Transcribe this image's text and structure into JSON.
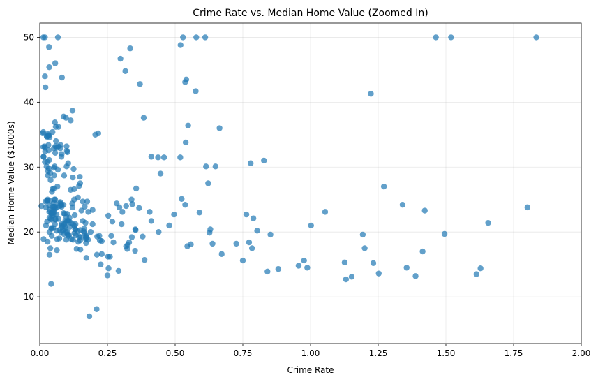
{
  "chart_data": {
    "type": "scatter",
    "title": "Crime Rate vs. Median Home Value (Zoomed In)",
    "xlabel": "Crime Rate",
    "ylabel": "Median Home Value ($1000s)",
    "xlim": [
      0,
      2.0
    ],
    "ylim": [
      2.8,
      52.2
    ],
    "xticks": [
      "0.00",
      "0.25",
      "0.50",
      "0.75",
      "1.00",
      "1.25",
      "1.50",
      "1.75",
      "2.00"
    ],
    "yticks": [
      "10",
      "20",
      "30",
      "40",
      "50"
    ],
    "grid": true,
    "marker_color": "#1f77b4",
    "marker_alpha": 0.7,
    "points": [
      [
        0.006,
        24.0
      ],
      [
        0.027,
        21.6
      ],
      [
        0.027,
        34.7
      ],
      [
        0.032,
        33.4
      ],
      [
        0.069,
        36.2
      ],
      [
        0.03,
        28.7
      ],
      [
        0.088,
        22.9
      ],
      [
        0.145,
        27.1
      ],
      [
        0.211,
        16.5
      ],
      [
        0.17,
        18.9
      ],
      [
        0.225,
        15.0
      ],
      [
        0.117,
        18.9
      ],
      [
        0.094,
        21.7
      ],
      [
        0.63,
        20.4
      ],
      [
        0.638,
        18.2
      ],
      [
        0.627,
        19.9
      ],
      [
        1.054,
        23.1
      ],
      [
        0.784,
        17.5
      ],
      [
        0.803,
        20.2
      ],
      [
        0.726,
        18.2
      ],
      [
        1.252,
        13.6
      ],
      [
        0.852,
        19.6
      ],
      [
        1.232,
        15.2
      ],
      [
        0.988,
        14.5
      ],
      [
        0.75,
        15.6
      ],
      [
        0.841,
        13.9
      ],
      [
        0.672,
        16.6
      ],
      [
        0.956,
        14.8
      ],
      [
        0.773,
        18.4
      ],
      [
        1.002,
        21.0
      ],
      [
        1.131,
        12.7
      ],
      [
        1.355,
        14.5
      ],
      [
        1.388,
        13.2
      ],
      [
        1.152,
        13.1
      ],
      [
        1.613,
        13.5
      ],
      [
        0.064,
        18.9
      ],
      [
        0.097,
        20.0
      ],
      [
        0.08,
        21.0
      ],
      [
        0.175,
        24.7
      ],
      [
        0.028,
        30.8
      ],
      [
        0.034,
        34.9
      ],
      [
        0.127,
        26.6
      ],
      [
        0.141,
        25.3
      ],
      [
        0.159,
        24.7
      ],
      [
        0.123,
        21.2
      ],
      [
        0.171,
        19.3
      ],
      [
        0.188,
        20.0
      ],
      [
        0.229,
        16.6
      ],
      [
        0.254,
        14.4
      ],
      [
        0.22,
        19.4
      ],
      [
        0.089,
        19.7
      ],
      [
        0.043,
        20.5
      ],
      [
        0.054,
        25.0
      ],
      [
        0.05,
        23.4
      ],
      [
        0.014,
        18.9
      ],
      [
        0.013,
        35.4
      ],
      [
        0.021,
        24.7
      ],
      [
        0.014,
        31.6
      ],
      [
        0.154,
        23.3
      ],
      [
        0.103,
        19.6
      ],
      [
        0.149,
        18.7
      ],
      [
        0.172,
        16.0
      ],
      [
        0.11,
        22.2
      ],
      [
        0.127,
        25.0
      ],
      [
        0.019,
        33.0
      ],
      [
        0.036,
        23.5
      ],
      [
        0.044,
        19.4
      ],
      [
        0.058,
        22.0
      ],
      [
        0.136,
        17.4
      ],
      [
        0.128,
        20.9
      ],
      [
        0.088,
        24.2
      ],
      [
        0.159,
        21.7
      ],
      [
        0.092,
        22.8
      ],
      [
        0.195,
        23.4
      ],
      [
        0.079,
        24.1
      ],
      [
        0.095,
        21.4
      ],
      [
        0.102,
        20.0
      ],
      [
        0.083,
        20.8
      ],
      [
        0.056,
        21.2
      ],
      [
        0.085,
        20.3
      ],
      [
        0.04,
        28.0
      ],
      [
        0.047,
        23.9
      ],
      [
        0.038,
        24.8
      ],
      [
        0.043,
        22.9
      ],
      [
        0.052,
        23.9
      ],
      [
        0.047,
        26.6
      ],
      [
        0.045,
        22.5
      ],
      [
        0.036,
        22.2
      ],
      [
        0.057,
        23.6
      ],
      [
        0.053,
        28.7
      ],
      [
        0.05,
        22.6
      ],
      [
        0.04,
        22.0
      ],
      [
        0.042,
        22.9
      ],
      [
        0.029,
        25.0
      ],
      [
        0.043,
        20.6
      ],
      [
        0.122,
        28.4
      ],
      [
        0.115,
        21.4
      ],
      [
        0.121,
        38.7
      ],
      [
        0.082,
        43.8
      ],
      [
        0.069,
        33.2
      ],
      [
        0.149,
        27.5
      ],
      [
        0.114,
        26.5
      ],
      [
        0.229,
        18.6
      ],
      [
        0.212,
        19.3
      ],
      [
        0.14,
        20.1
      ],
      [
        0.133,
        19.5
      ],
      [
        0.171,
        19.5
      ],
      [
        0.131,
        20.4
      ],
      [
        0.128,
        19.8
      ],
      [
        0.264,
        19.4
      ],
      [
        0.108,
        21.7
      ],
      [
        0.101,
        22.8
      ],
      [
        0.123,
        18.8
      ],
      [
        0.222,
        18.7
      ],
      [
        0.142,
        18.5
      ],
      [
        0.171,
        18.3
      ],
      [
        0.132,
        21.2
      ],
      [
        0.151,
        19.2
      ],
      [
        0.131,
        20.4
      ],
      [
        0.145,
        19.3
      ],
      [
        0.069,
        22.0
      ],
      [
        0.072,
        20.3
      ],
      [
        0.093,
        20.5
      ],
      [
        0.15,
        17.3
      ],
      [
        0.098,
        18.8
      ],
      [
        0.169,
        21.4
      ],
      [
        0.387,
        15.7
      ],
      [
        0.259,
        16.2
      ],
      [
        0.325,
        18.0
      ],
      [
        0.881,
        14.3
      ],
      [
        0.34,
        19.2
      ],
      [
        1.193,
        19.6
      ],
      [
        0.59,
        23.0
      ],
      [
        0.33,
        18.4
      ],
      [
        0.976,
        15.6
      ],
      [
        0.558,
        18.1
      ],
      [
        0.323,
        17.4
      ],
      [
        0.352,
        17.1
      ],
      [
        0.25,
        13.3
      ],
      [
        0.545,
        17.8
      ],
      [
        0.291,
        14.0
      ],
      [
        1.628,
        14.4
      ],
      [
        0.013,
        50.0
      ],
      [
        0.034,
        48.5
      ],
      [
        0.035,
        45.4
      ],
      [
        0.023,
        23.8
      ],
      [
        0.027,
        24.8
      ],
      [
        0.053,
        23.1
      ],
      [
        0.049,
        22.9
      ],
      [
        0.052,
        24.5
      ],
      [
        0.09,
        21.2
      ],
      [
        0.019,
        44.0
      ],
      [
        0.019,
        50.0
      ],
      [
        0.033,
        32.6
      ],
      [
        0.058,
        21.9
      ],
      [
        0.03,
        29.4
      ],
      [
        0.1,
        32.5
      ],
      [
        0.076,
        32.9
      ],
      [
        0.044,
        21.9
      ],
      [
        0.059,
        36.2
      ],
      [
        0.057,
        46.0
      ],
      [
        0.067,
        50.0
      ],
      [
        0.052,
        32.9
      ],
      [
        0.058,
        33.2
      ],
      [
        0.033,
        29.8
      ],
      [
        0.035,
        23.1
      ],
      [
        0.03,
        35.1
      ],
      [
        0.036,
        34.6
      ],
      [
        0.063,
        33.0
      ],
      [
        0.08,
        31.6
      ],
      [
        0.013,
        33.1
      ],
      [
        0.011,
        35.2
      ],
      [
        0.025,
        30.1
      ],
      [
        0.021,
        42.3
      ],
      [
        0.018,
        33.2
      ],
      [
        0.028,
        24.8
      ],
      [
        0.023,
        21.0
      ],
      [
        0.014,
        31.6
      ],
      [
        0.031,
        34.9
      ],
      [
        0.055,
        30.1
      ],
      [
        0.035,
        24.1
      ],
      [
        0.047,
        35.4
      ],
      [
        0.105,
        30.6
      ],
      [
        0.081,
        32.0
      ],
      [
        0.125,
        29.7
      ],
      [
        0.088,
        37.8
      ],
      [
        0.102,
        32.3
      ],
      [
        0.08,
        24.3
      ],
      [
        0.09,
        28.7
      ],
      [
        0.067,
        29.6
      ],
      [
        0.063,
        23.8
      ],
      [
        0.099,
        33.2
      ],
      [
        0.065,
        27.0
      ],
      [
        0.06,
        34.0
      ],
      [
        0.056,
        36.9
      ],
      [
        0.057,
        32.2
      ],
      [
        0.05,
        20.6
      ],
      [
        0.057,
        25.0
      ],
      [
        0.036,
        20.0
      ],
      [
        0.077,
        33.4
      ],
      [
        0.098,
        22.3
      ],
      [
        0.099,
        30.1
      ],
      [
        0.081,
        23.9
      ],
      [
        0.074,
        24.4
      ],
      [
        0.052,
        26.7
      ],
      [
        0.045,
        26.2
      ],
      [
        0.035,
        31.1
      ],
      [
        0.062,
        22.7
      ],
      [
        0.114,
        37.2
      ],
      [
        0.019,
        30.8
      ],
      [
        0.076,
        24.6
      ],
      [
        0.052,
        29.9
      ],
      [
        0.02,
        32.4
      ],
      [
        0.026,
        34.7
      ],
      [
        0.097,
        37.6
      ],
      [
        0.039,
        29.1
      ],
      [
        0.078,
        20.0
      ],
      [
        0.072,
        19.0
      ],
      [
        0.094,
        20.8
      ],
      [
        0.12,
        24.4
      ],
      [
        0.148,
        28.5
      ],
      [
        0.121,
        23.8
      ],
      [
        0.162,
        20.1
      ],
      [
        0.166,
        23.9
      ],
      [
        0.111,
        20.8
      ],
      [
        0.179,
        23.1
      ],
      [
        0.101,
        21.7
      ],
      [
        0.164,
        20.5
      ],
      [
        0.178,
        18.8
      ],
      [
        0.062,
        20.2
      ],
      [
        0.074,
        24.0
      ],
      [
        0.105,
        21.7
      ],
      [
        0.106,
        19.4
      ],
      [
        0.056,
        23.9
      ],
      [
        0.08,
        21.2
      ],
      [
        0.171,
        19.1
      ],
      [
        0.195,
        21.2
      ],
      [
        0.15,
        20.3
      ],
      [
        0.108,
        19.5
      ],
      [
        0.165,
        19.8
      ],
      [
        0.129,
        22.6
      ],
      [
        0.063,
        17.2
      ],
      [
        0.036,
        16.5
      ],
      [
        0.039,
        17.5
      ],
      [
        0.042,
        12.0
      ],
      [
        0.029,
        18.5
      ],
      [
        0.21,
        8.1
      ],
      [
        0.183,
        7.0
      ],
      [
        0.216,
        35.2
      ],
      [
        0.205,
        35.0
      ],
      [
        0.529,
        50.0
      ],
      [
        0.578,
        50.0
      ],
      [
        0.611,
        50.0
      ],
      [
        0.52,
        48.8
      ],
      [
        0.334,
        48.3
      ],
      [
        0.298,
        46.7
      ],
      [
        0.316,
        44.8
      ],
      [
        0.541,
        43.5
      ],
      [
        0.537,
        43.1
      ],
      [
        0.576,
        41.7
      ],
      [
        0.37,
        42.8
      ],
      [
        0.384,
        37.6
      ],
      [
        0.548,
        36.4
      ],
      [
        0.664,
        36.0
      ],
      [
        0.539,
        33.8
      ],
      [
        0.614,
        30.1
      ],
      [
        0.649,
        30.1
      ],
      [
        0.519,
        31.5
      ],
      [
        0.459,
        31.5
      ],
      [
        0.437,
        31.5
      ],
      [
        0.412,
        31.6
      ],
      [
        0.446,
        29.0
      ],
      [
        0.622,
        27.5
      ],
      [
        0.524,
        25.1
      ],
      [
        0.537,
        24.2
      ],
      [
        0.284,
        24.4
      ],
      [
        0.294,
        23.8
      ],
      [
        0.356,
        26.7
      ],
      [
        0.367,
        23.7
      ],
      [
        0.406,
        23.1
      ],
      [
        0.412,
        21.7
      ],
      [
        0.496,
        22.7
      ],
      [
        0.439,
        20.0
      ],
      [
        0.353,
        20.4
      ],
      [
        0.478,
        21.0
      ],
      [
        0.319,
        24.0
      ],
      [
        0.342,
        24.3
      ],
      [
        0.302,
        21.2
      ],
      [
        0.268,
        21.6
      ],
      [
        0.272,
        18.4
      ],
      [
        0.253,
        22.5
      ],
      [
        0.252,
        16.2
      ],
      [
        0.339,
        25.0
      ],
      [
        0.319,
        17.8
      ],
      [
        0.354,
        20.3
      ],
      [
        0.38,
        19.3
      ],
      [
        0.305,
        23.1
      ],
      [
        0.779,
        30.6
      ],
      [
        0.828,
        31.0
      ],
      [
        0.763,
        22.7
      ],
      [
        0.789,
        22.1
      ],
      [
        1.223,
        41.3
      ],
      [
        1.271,
        27.0
      ],
      [
        1.34,
        24.2
      ],
      [
        1.422,
        23.3
      ],
      [
        1.834,
        50.0
      ],
      [
        1.463,
        50.0
      ],
      [
        1.519,
        50.0
      ],
      [
        1.801,
        23.8
      ],
      [
        1.656,
        21.4
      ],
      [
        1.495,
        19.7
      ],
      [
        1.414,
        17.0
      ],
      [
        1.2,
        17.5
      ],
      [
        1.126,
        15.3
      ]
    ]
  }
}
